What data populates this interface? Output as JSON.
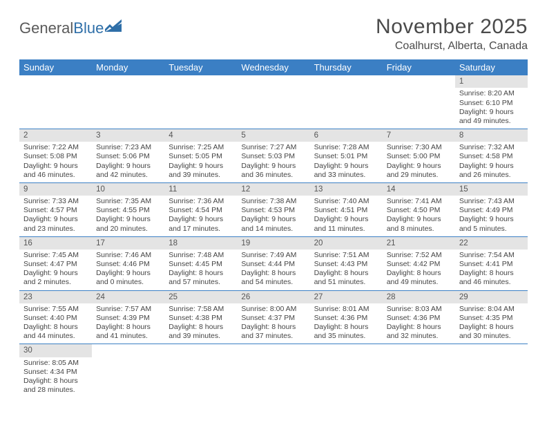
{
  "logo": {
    "text1": "General",
    "text2": "Blue"
  },
  "title": "November 2025",
  "location": "Coalhurst, Alberta, Canada",
  "colors": {
    "header_bg": "#3b7fc4",
    "header_text": "#ffffff",
    "daynum_bg": "#e4e4e4",
    "border": "#3b7fc4",
    "text": "#444444"
  },
  "weekdays": [
    "Sunday",
    "Monday",
    "Tuesday",
    "Wednesday",
    "Thursday",
    "Friday",
    "Saturday"
  ],
  "weeks": [
    [
      null,
      null,
      null,
      null,
      null,
      null,
      {
        "n": "1",
        "sr": "Sunrise: 8:20 AM",
        "ss": "Sunset: 6:10 PM",
        "d1": "Daylight: 9 hours",
        "d2": "and 49 minutes."
      }
    ],
    [
      {
        "n": "2",
        "sr": "Sunrise: 7:22 AM",
        "ss": "Sunset: 5:08 PM",
        "d1": "Daylight: 9 hours",
        "d2": "and 46 minutes."
      },
      {
        "n": "3",
        "sr": "Sunrise: 7:23 AM",
        "ss": "Sunset: 5:06 PM",
        "d1": "Daylight: 9 hours",
        "d2": "and 42 minutes."
      },
      {
        "n": "4",
        "sr": "Sunrise: 7:25 AM",
        "ss": "Sunset: 5:05 PM",
        "d1": "Daylight: 9 hours",
        "d2": "and 39 minutes."
      },
      {
        "n": "5",
        "sr": "Sunrise: 7:27 AM",
        "ss": "Sunset: 5:03 PM",
        "d1": "Daylight: 9 hours",
        "d2": "and 36 minutes."
      },
      {
        "n": "6",
        "sr": "Sunrise: 7:28 AM",
        "ss": "Sunset: 5:01 PM",
        "d1": "Daylight: 9 hours",
        "d2": "and 33 minutes."
      },
      {
        "n": "7",
        "sr": "Sunrise: 7:30 AM",
        "ss": "Sunset: 5:00 PM",
        "d1": "Daylight: 9 hours",
        "d2": "and 29 minutes."
      },
      {
        "n": "8",
        "sr": "Sunrise: 7:32 AM",
        "ss": "Sunset: 4:58 PM",
        "d1": "Daylight: 9 hours",
        "d2": "and 26 minutes."
      }
    ],
    [
      {
        "n": "9",
        "sr": "Sunrise: 7:33 AM",
        "ss": "Sunset: 4:57 PM",
        "d1": "Daylight: 9 hours",
        "d2": "and 23 minutes."
      },
      {
        "n": "10",
        "sr": "Sunrise: 7:35 AM",
        "ss": "Sunset: 4:55 PM",
        "d1": "Daylight: 9 hours",
        "d2": "and 20 minutes."
      },
      {
        "n": "11",
        "sr": "Sunrise: 7:36 AM",
        "ss": "Sunset: 4:54 PM",
        "d1": "Daylight: 9 hours",
        "d2": "and 17 minutes."
      },
      {
        "n": "12",
        "sr": "Sunrise: 7:38 AM",
        "ss": "Sunset: 4:53 PM",
        "d1": "Daylight: 9 hours",
        "d2": "and 14 minutes."
      },
      {
        "n": "13",
        "sr": "Sunrise: 7:40 AM",
        "ss": "Sunset: 4:51 PM",
        "d1": "Daylight: 9 hours",
        "d2": "and 11 minutes."
      },
      {
        "n": "14",
        "sr": "Sunrise: 7:41 AM",
        "ss": "Sunset: 4:50 PM",
        "d1": "Daylight: 9 hours",
        "d2": "and 8 minutes."
      },
      {
        "n": "15",
        "sr": "Sunrise: 7:43 AM",
        "ss": "Sunset: 4:49 PM",
        "d1": "Daylight: 9 hours",
        "d2": "and 5 minutes."
      }
    ],
    [
      {
        "n": "16",
        "sr": "Sunrise: 7:45 AM",
        "ss": "Sunset: 4:47 PM",
        "d1": "Daylight: 9 hours",
        "d2": "and 2 minutes."
      },
      {
        "n": "17",
        "sr": "Sunrise: 7:46 AM",
        "ss": "Sunset: 4:46 PM",
        "d1": "Daylight: 9 hours",
        "d2": "and 0 minutes."
      },
      {
        "n": "18",
        "sr": "Sunrise: 7:48 AM",
        "ss": "Sunset: 4:45 PM",
        "d1": "Daylight: 8 hours",
        "d2": "and 57 minutes."
      },
      {
        "n": "19",
        "sr": "Sunrise: 7:49 AM",
        "ss": "Sunset: 4:44 PM",
        "d1": "Daylight: 8 hours",
        "d2": "and 54 minutes."
      },
      {
        "n": "20",
        "sr": "Sunrise: 7:51 AM",
        "ss": "Sunset: 4:43 PM",
        "d1": "Daylight: 8 hours",
        "d2": "and 51 minutes."
      },
      {
        "n": "21",
        "sr": "Sunrise: 7:52 AM",
        "ss": "Sunset: 4:42 PM",
        "d1": "Daylight: 8 hours",
        "d2": "and 49 minutes."
      },
      {
        "n": "22",
        "sr": "Sunrise: 7:54 AM",
        "ss": "Sunset: 4:41 PM",
        "d1": "Daylight: 8 hours",
        "d2": "and 46 minutes."
      }
    ],
    [
      {
        "n": "23",
        "sr": "Sunrise: 7:55 AM",
        "ss": "Sunset: 4:40 PM",
        "d1": "Daylight: 8 hours",
        "d2": "and 44 minutes."
      },
      {
        "n": "24",
        "sr": "Sunrise: 7:57 AM",
        "ss": "Sunset: 4:39 PM",
        "d1": "Daylight: 8 hours",
        "d2": "and 41 minutes."
      },
      {
        "n": "25",
        "sr": "Sunrise: 7:58 AM",
        "ss": "Sunset: 4:38 PM",
        "d1": "Daylight: 8 hours",
        "d2": "and 39 minutes."
      },
      {
        "n": "26",
        "sr": "Sunrise: 8:00 AM",
        "ss": "Sunset: 4:37 PM",
        "d1": "Daylight: 8 hours",
        "d2": "and 37 minutes."
      },
      {
        "n": "27",
        "sr": "Sunrise: 8:01 AM",
        "ss": "Sunset: 4:36 PM",
        "d1": "Daylight: 8 hours",
        "d2": "and 35 minutes."
      },
      {
        "n": "28",
        "sr": "Sunrise: 8:03 AM",
        "ss": "Sunset: 4:36 PM",
        "d1": "Daylight: 8 hours",
        "d2": "and 32 minutes."
      },
      {
        "n": "29",
        "sr": "Sunrise: 8:04 AM",
        "ss": "Sunset: 4:35 PM",
        "d1": "Daylight: 8 hours",
        "d2": "and 30 minutes."
      }
    ],
    [
      {
        "n": "30",
        "sr": "Sunrise: 8:05 AM",
        "ss": "Sunset: 4:34 PM",
        "d1": "Daylight: 8 hours",
        "d2": "and 28 minutes."
      },
      null,
      null,
      null,
      null,
      null,
      null
    ]
  ]
}
